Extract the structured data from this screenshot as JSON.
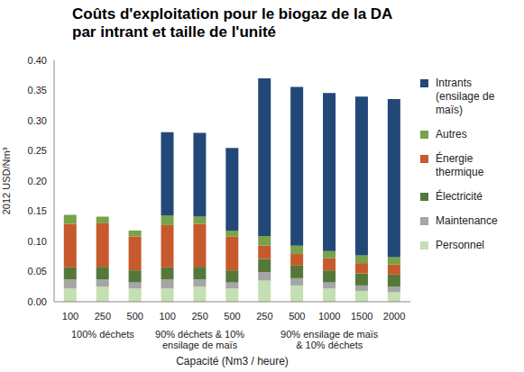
{
  "chart_data": {
    "type": "bar",
    "title": "Coûts d'exploitation pour le biogaz de la DA\npar intrant et taille de l'unité",
    "x_label": "Capacité (Nm3 / heure)",
    "y_label": "2012 USD/Nm³",
    "categories": [
      "100",
      "250",
      "500",
      "100",
      "250",
      "500",
      "250",
      "500",
      "1000",
      "1500",
      "2000"
    ],
    "category_groups": [
      {
        "label": "100% déchets",
        "count": 3
      },
      {
        "label": "90% déchets & 10% ensilage de maïs",
        "count": 3
      },
      {
        "label": "90% ensilage de maïs & 10% déchets",
        "count": 5
      }
    ],
    "series": [
      {
        "name": "Personnel",
        "color": "#c4dfb2",
        "values": [
          0.022,
          0.025,
          0.022,
          0.022,
          0.025,
          0.022,
          0.035,
          0.027,
          0.022,
          0.018,
          0.016
        ]
      },
      {
        "name": "Maintenance",
        "color": "#a5a5a5",
        "values": [
          0.015,
          0.012,
          0.01,
          0.015,
          0.012,
          0.01,
          0.014,
          0.012,
          0.01,
          0.009,
          0.009
        ]
      },
      {
        "name": "Électricité",
        "color": "#55783a",
        "values": [
          0.02,
          0.021,
          0.02,
          0.02,
          0.021,
          0.02,
          0.022,
          0.021,
          0.02,
          0.02,
          0.02
        ]
      },
      {
        "name": "Énergie thermique",
        "color": "#c65a2c",
        "values": [
          0.072,
          0.072,
          0.056,
          0.07,
          0.071,
          0.056,
          0.022,
          0.019,
          0.02,
          0.017,
          0.017
        ]
      },
      {
        "name": "Autres",
        "color": "#78a24b",
        "values": [
          0.015,
          0.011,
          0.01,
          0.016,
          0.012,
          0.01,
          0.016,
          0.014,
          0.012,
          0.013,
          0.012
        ]
      },
      {
        "name": "Intrants (ensilage de maïs)",
        "color": "#234878",
        "values": [
          0,
          0,
          0,
          0.138,
          0.139,
          0.137,
          0.261,
          0.263,
          0.262,
          0.263,
          0.262
        ]
      }
    ],
    "stacked": true,
    "grid": false,
    "legend": "right",
    "ylim": [
      0,
      0.4
    ],
    "yticks": [
      {
        "value": 0,
        "label": "0.00"
      },
      0.05,
      {
        "value": 0.1,
        "label": "0.10"
      },
      0.15,
      {
        "value": 0.2,
        "label": "0.20"
      },
      0.25,
      {
        "value": 0.3,
        "label": "0.30"
      },
      0.35,
      {
        "value": 0.4,
        "label": "0.40"
      }
    ]
  }
}
